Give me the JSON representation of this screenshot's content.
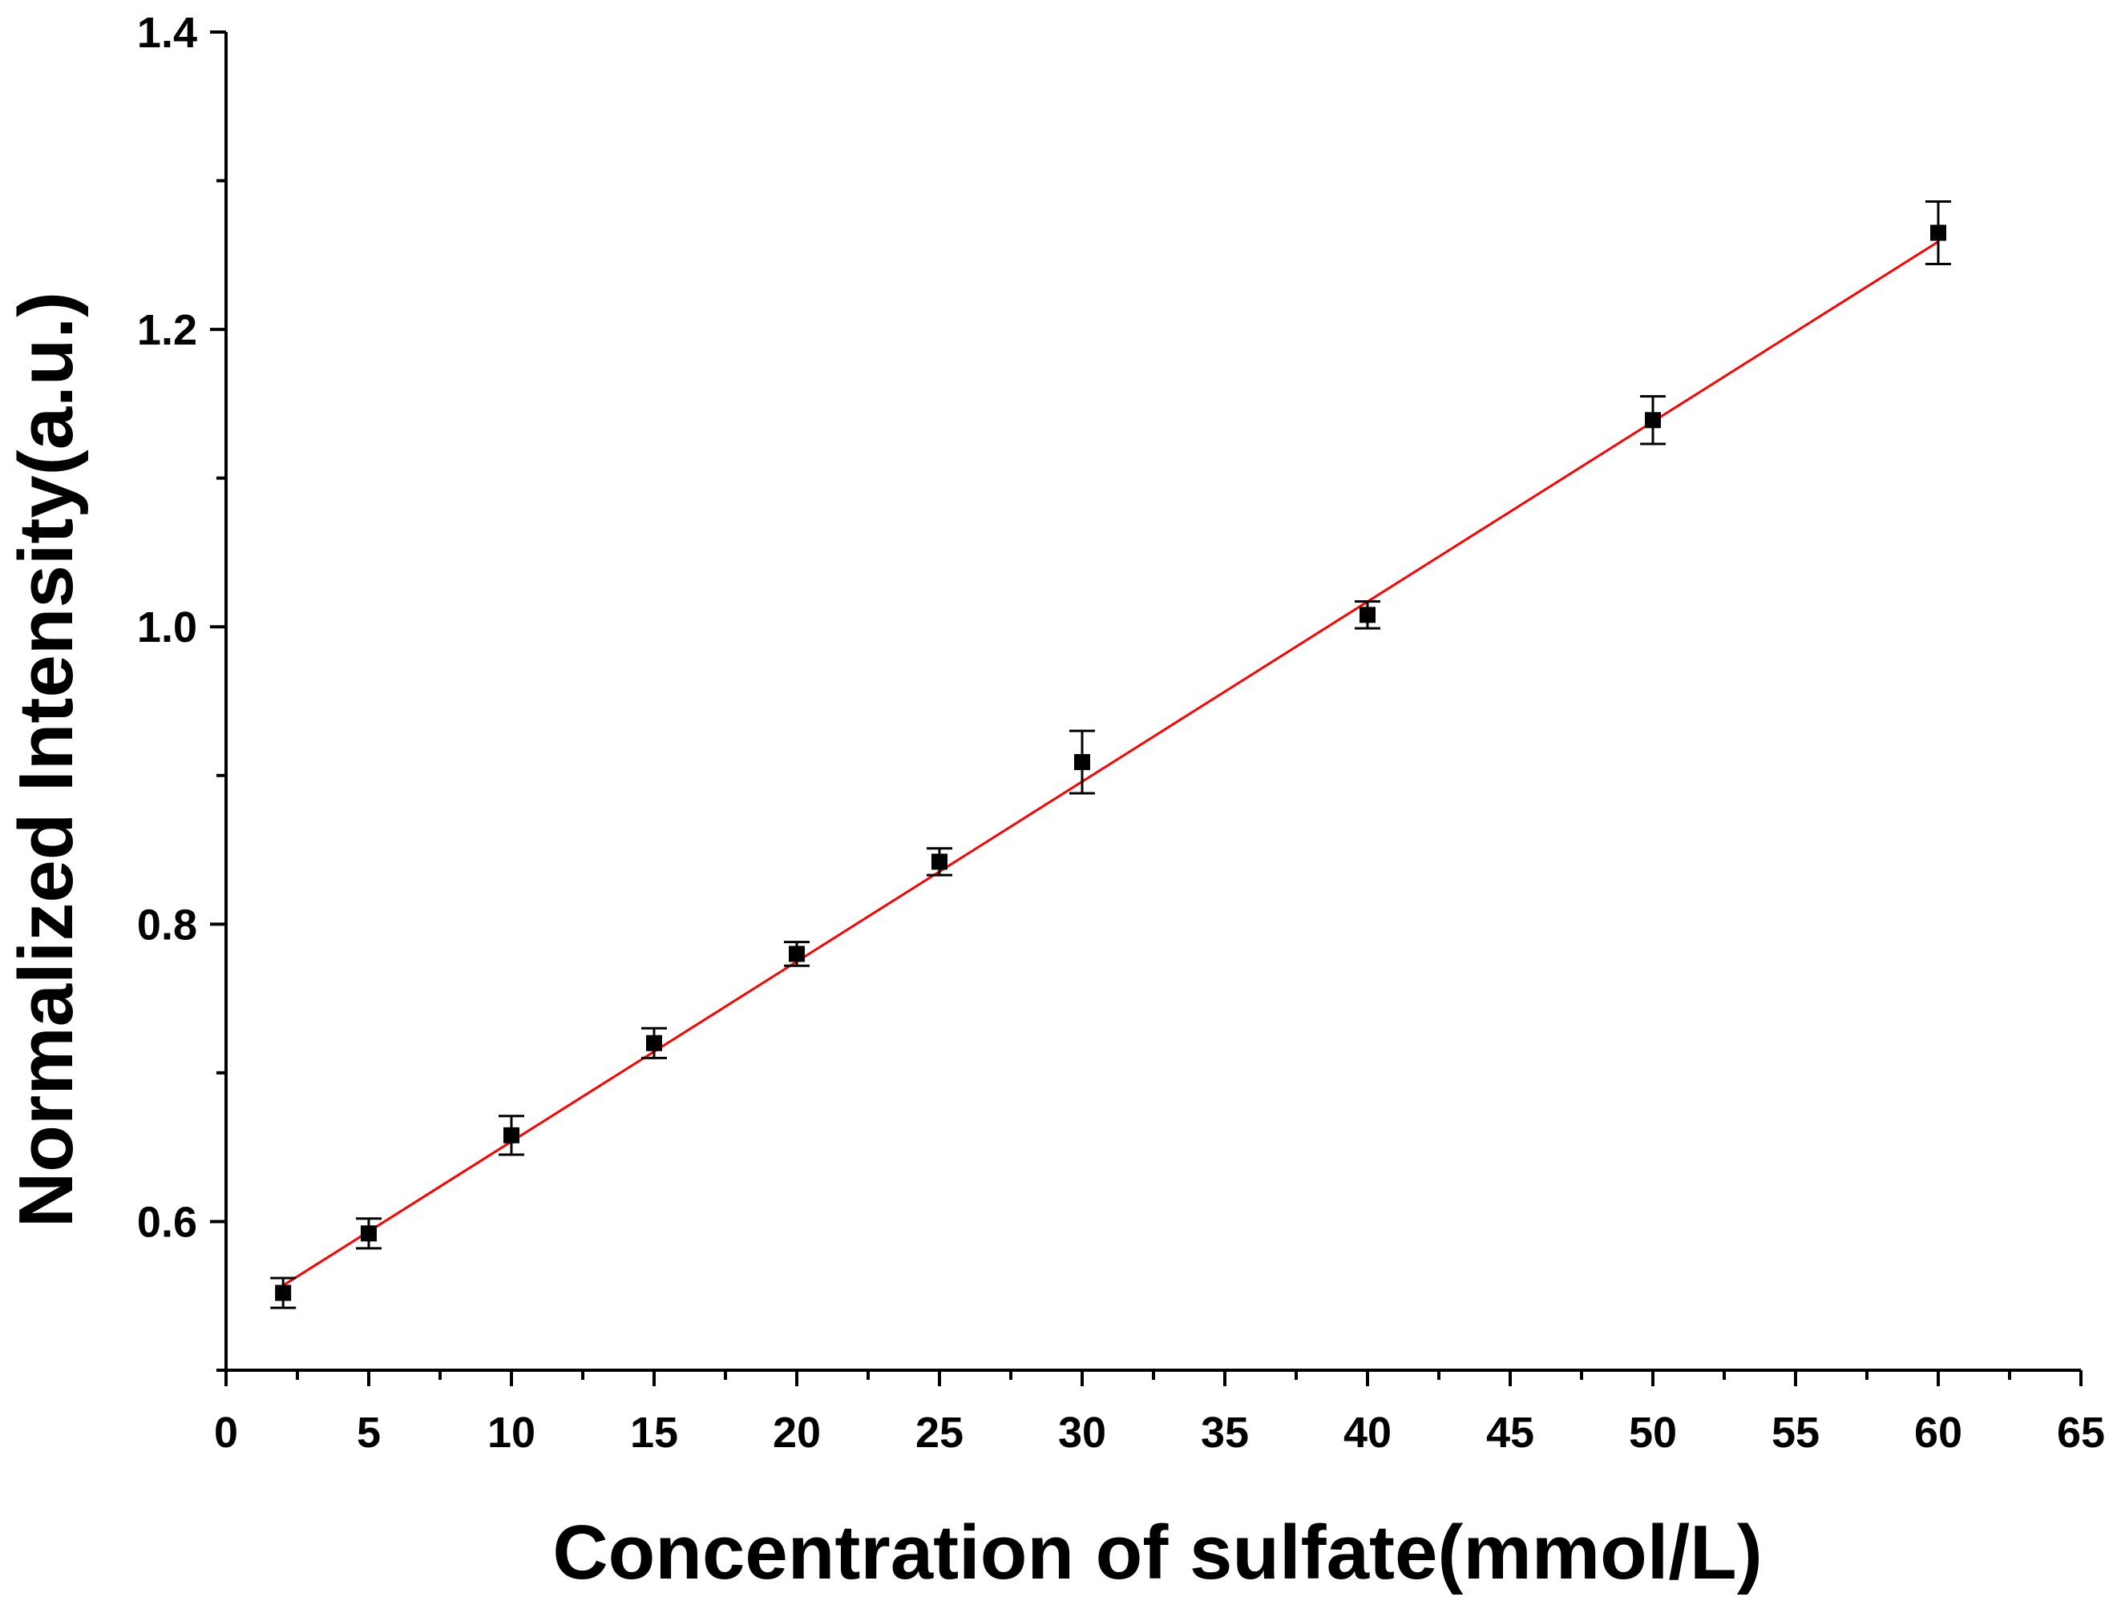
{
  "chart_data": {
    "type": "scatter",
    "title": "",
    "xlabel": "Concentration of sulfate(mmol/L)",
    "ylabel": "Normalized Intensity(a.u.)",
    "xlim": [
      0,
      65
    ],
    "ylim": [
      0.5,
      1.4
    ],
    "x_ticks": [
      "0",
      "5",
      "10",
      "15",
      "20",
      "25",
      "30",
      "35",
      "40",
      "45",
      "50",
      "55",
      "60",
      "65"
    ],
    "y_ticks": [
      "0.6",
      "0.8",
      "1.0",
      "1.2",
      "1.4"
    ],
    "grid": false,
    "legend": "none",
    "series": [
      {
        "marker": "square",
        "color": "#000000",
        "points": [
          {
            "x": 2,
            "y": 0.552,
            "err": 0.01
          },
          {
            "x": 5,
            "y": 0.592,
            "err": 0.01
          },
          {
            "x": 10,
            "y": 0.658,
            "err": 0.013
          },
          {
            "x": 15,
            "y": 0.72,
            "err": 0.01
          },
          {
            "x": 20,
            "y": 0.78,
            "err": 0.008
          },
          {
            "x": 25,
            "y": 0.842,
            "err": 0.009
          },
          {
            "x": 30,
            "y": 0.909,
            "err": 0.021
          },
          {
            "x": 40,
            "y": 1.008,
            "err": 0.009
          },
          {
            "x": 50,
            "y": 1.139,
            "err": 0.016
          },
          {
            "x": 60,
            "y": 1.265,
            "err": 0.021
          }
        ]
      }
    ],
    "fit_line": {
      "color": "#ff0000",
      "x": [
        2,
        60
      ],
      "y": [
        0.557,
        1.259
      ]
    }
  }
}
